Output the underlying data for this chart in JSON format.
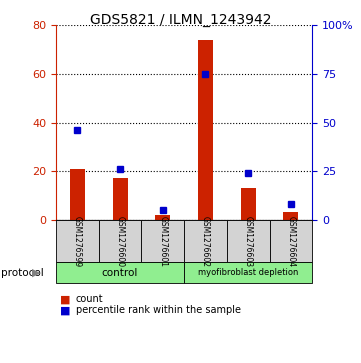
{
  "title": "GDS5821 / ILMN_1243942",
  "samples": [
    "GSM1276599",
    "GSM1276600",
    "GSM1276601",
    "GSM1276602",
    "GSM1276603",
    "GSM1276604"
  ],
  "counts": [
    21,
    17,
    2,
    74,
    13,
    3
  ],
  "percentiles": [
    46,
    26,
    5,
    75,
    24,
    8
  ],
  "left_ylim": [
    0,
    80
  ],
  "right_ylim": [
    0,
    100
  ],
  "left_yticks": [
    0,
    20,
    40,
    60,
    80
  ],
  "right_yticks": [
    0,
    25,
    50,
    75,
    100
  ],
  "right_yticklabels": [
    "0",
    "25",
    "50",
    "75",
    "100%"
  ],
  "bar_color": "#CC2200",
  "dot_color": "#0000CC",
  "bar_width": 0.35,
  "sample_box_color": "#D3D3D3",
  "protocol_color": "#90EE90",
  "left_axis_color": "#CC2200",
  "right_axis_color": "#0000CC",
  "protocol_labels": [
    "control",
    "myofibroblast depletion"
  ],
  "protocol_ranges": [
    [
      0,
      3
    ],
    [
      3,
      6
    ]
  ]
}
